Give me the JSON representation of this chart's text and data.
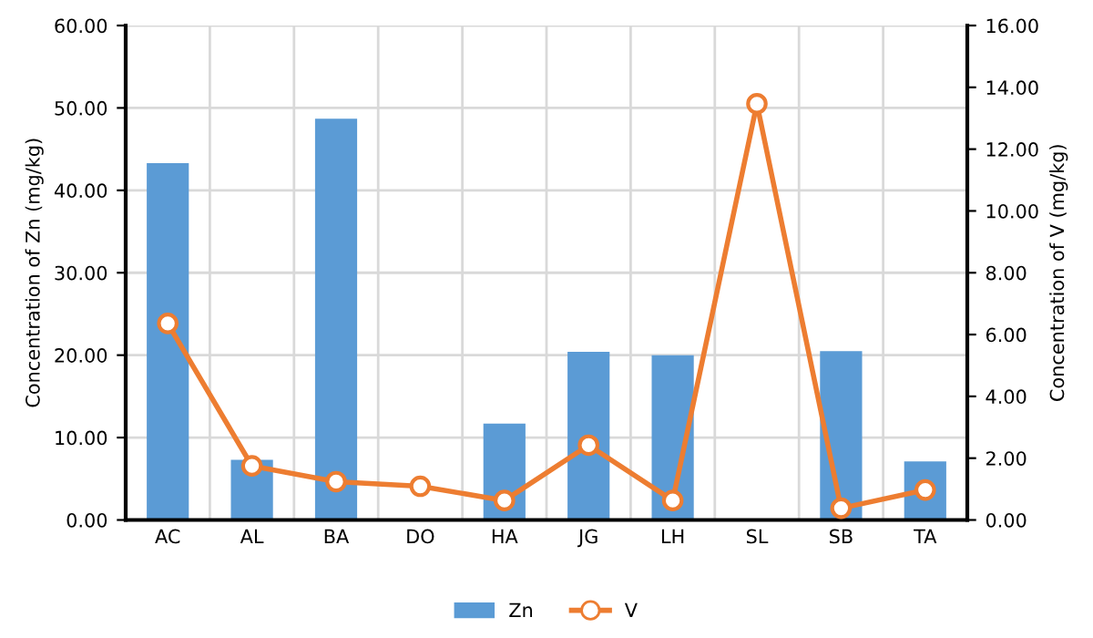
{
  "chart_data": {
    "type": "bar",
    "categories": [
      "AC",
      "AL",
      "BA",
      "DO",
      "HA",
      "JG",
      "LH",
      "SL",
      "SB",
      "TA"
    ],
    "ylabel": "Concentration of Zn (mg/kg)",
    "y2label": "Concentration of V (mg/kg)",
    "series": [
      {
        "name": "Zn",
        "color": "#5b9bd5",
        "values": [
          43.3,
          7.3,
          48.7,
          0,
          11.7,
          20.4,
          20.0,
          0,
          20.5,
          7.1
        ]
      },
      {
        "name": "V",
        "type": "line",
        "axis": "y2",
        "color": "#ed7d31",
        "marker": "circle",
        "values": [
          6.36,
          1.75,
          1.24,
          1.09,
          0.63,
          2.42,
          0.63,
          13.47,
          0.38,
          0.97
        ]
      }
    ],
    "ylim": [
      0,
      60
    ],
    "yticks": [
      {
        "value": 0,
        "label": "0.00"
      },
      {
        "value": 10,
        "label": "10.00"
      },
      {
        "value": 20,
        "label": "20.00"
      },
      {
        "value": 30,
        "label": "30.00"
      },
      {
        "value": 40,
        "label": "40.00"
      },
      {
        "value": 50,
        "label": "50.00"
      },
      {
        "value": 60,
        "label": "60.00"
      }
    ],
    "y2lim": [
      0,
      16
    ],
    "y2ticks": [
      {
        "value": 0,
        "label": "0.00"
      },
      {
        "value": 2,
        "label": "2.00"
      },
      {
        "value": 4,
        "label": "4.00"
      },
      {
        "value": 6,
        "label": "6.00"
      },
      {
        "value": 8,
        "label": "8.00"
      },
      {
        "value": 10,
        "label": "10.00"
      },
      {
        "value": 12,
        "label": "12.00"
      },
      {
        "value": 14,
        "label": "14.00"
      },
      {
        "value": 16,
        "label": "16.00"
      }
    ],
    "grid": true,
    "legend": "bottom"
  }
}
